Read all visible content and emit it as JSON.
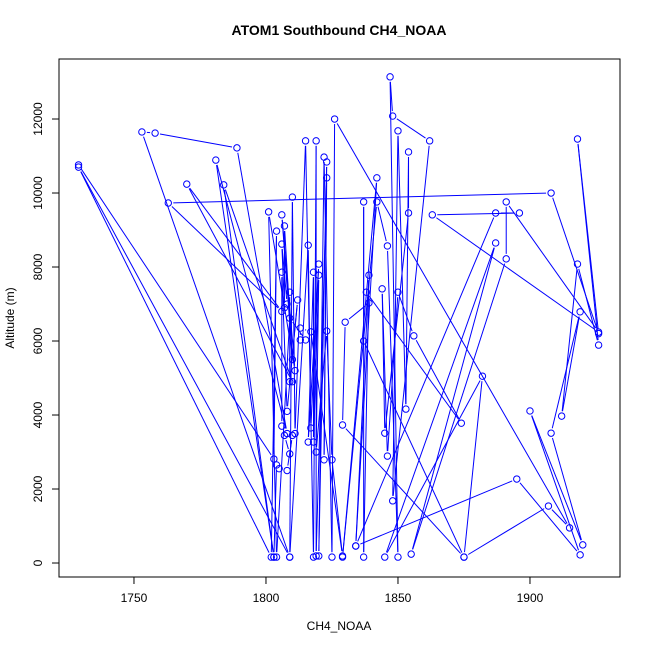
{
  "chart_data": {
    "type": "line",
    "markers": "open-circle",
    "title": "ATOM1 Southbound CH4_NOAA",
    "xlabel": "CH4_NOAA",
    "ylabel": "Altitude (m)",
    "xlim": [
      1721.6,
      1934.1
    ],
    "ylim": [
      -378,
      13622
    ],
    "xticks": [
      1750,
      1800,
      1850,
      1900
    ],
    "yticks": [
      0,
      2000,
      4000,
      6000,
      8000,
      10000,
      12000
    ],
    "xtick_labels": [
      "1750",
      "1800",
      "1850",
      "1900"
    ],
    "ytick_labels": [
      "0",
      "2000",
      "4000",
      "6000",
      "8000",
      "10000",
      "12000"
    ],
    "grid": false,
    "color": "#0000ff",
    "series": [
      {
        "points": [
          [
            1729,
            10760
          ],
          [
            1803,
            2810
          ],
          [
            1804,
            8970
          ],
          [
            1802,
            160
          ],
          [
            1729,
            10700
          ],
          [
            1809,
            160
          ],
          [
            1753,
            11650
          ],
          [
            1758,
            11620
          ],
          [
            1789,
            11220
          ],
          [
            1808,
            3500
          ],
          [
            1781,
            10890
          ],
          [
            1803,
            160
          ],
          [
            1784,
            10220
          ],
          [
            1810,
            4900
          ],
          [
            1770,
            10240
          ],
          [
            1806,
            6800
          ],
          [
            1763,
            9730
          ],
          [
            1908,
            10000
          ],
          [
            1926,
            6200
          ],
          [
            1918,
            11460
          ],
          [
            1926,
            5890
          ],
          [
            1918,
            8080
          ],
          [
            1912,
            3970
          ],
          [
            1919,
            6790
          ],
          [
            1908,
            3510
          ],
          [
            1920,
            490
          ],
          [
            1900,
            4110
          ],
          [
            1919,
            220
          ],
          [
            1895,
            2270
          ],
          [
            1834,
            460
          ],
          [
            1887,
            9460
          ],
          [
            1896,
            9460
          ],
          [
            1863,
            9410
          ],
          [
            1926,
            6240
          ],
          [
            1891,
            9760
          ],
          [
            1891,
            8220
          ],
          [
            1855,
            240
          ],
          [
            1887,
            8650
          ],
          [
            1845,
            160
          ],
          [
            1882,
            5050
          ],
          [
            1875,
            160
          ],
          [
            1837,
            6000
          ],
          [
            1837,
            9760
          ],
          [
            1837,
            160
          ],
          [
            1839,
            7780
          ],
          [
            1834,
            460
          ],
          [
            1842,
            10410
          ],
          [
            1829,
            160
          ],
          [
            1842,
            9760
          ],
          [
            1846,
            8570
          ],
          [
            1850,
            160
          ],
          [
            1847,
            13140
          ],
          [
            1848,
            12080
          ],
          [
            1862,
            11410
          ],
          [
            1848,
            1680
          ],
          [
            1850,
            11680
          ],
          [
            1853,
            4160
          ],
          [
            1854,
            11110
          ],
          [
            1854,
            9460
          ],
          [
            1845,
            3510
          ],
          [
            1844,
            7410
          ],
          [
            1846,
            2890
          ],
          [
            1850,
            7320
          ],
          [
            1856,
            6140
          ],
          [
            1874,
            3780
          ],
          [
            1838,
            7320
          ],
          [
            1839,
            7030
          ],
          [
            1830,
            6510
          ],
          [
            1829,
            3730
          ],
          [
            1875,
            160
          ],
          [
            1907,
            1540
          ],
          [
            1915,
            950
          ],
          [
            1826,
            12000
          ],
          [
            1825,
            160
          ],
          [
            1822,
            10970
          ],
          [
            1820,
            190
          ],
          [
            1823,
            10840
          ],
          [
            1822,
            2790
          ],
          [
            1823,
            10410
          ],
          [
            1819,
            190
          ],
          [
            1819,
            11410
          ],
          [
            1818,
            160
          ],
          [
            1815,
            11410
          ],
          [
            1811,
            3500
          ],
          [
            1810,
            9890
          ],
          [
            1809,
            160
          ],
          [
            1816,
            8590
          ],
          [
            1817,
            3650
          ],
          [
            1820,
            8080
          ],
          [
            1816,
            3270
          ],
          [
            1818,
            7860
          ],
          [
            1818,
            3270
          ],
          [
            1820,
            7780
          ],
          [
            1819,
            3000
          ],
          [
            1823,
            6270
          ],
          [
            1825,
            2790
          ],
          [
            1829,
            190
          ],
          [
            1817,
            6250
          ],
          [
            1813,
            6350
          ],
          [
            1813,
            6030
          ],
          [
            1815,
            6030
          ],
          [
            1809,
            6620
          ],
          [
            1804,
            160
          ],
          [
            1801,
            9490
          ],
          [
            1811,
            5200
          ],
          [
            1806,
            9410
          ],
          [
            1810,
            5500
          ],
          [
            1807,
            9110
          ],
          [
            1807,
            6900
          ],
          [
            1806,
            8620
          ],
          [
            1808,
            7000
          ],
          [
            1809,
            7320
          ],
          [
            1809,
            4900
          ],
          [
            1812,
            7110
          ],
          [
            1808,
            4100
          ],
          [
            1806,
            7860
          ],
          [
            1806,
            3700
          ],
          [
            1807,
            3450
          ],
          [
            1809,
            2950
          ],
          [
            1810,
            3450
          ],
          [
            1808,
            2500
          ],
          [
            1805,
            2550
          ],
          [
            1804,
            2650
          ],
          [
            1803,
            160
          ]
        ]
      }
    ]
  }
}
